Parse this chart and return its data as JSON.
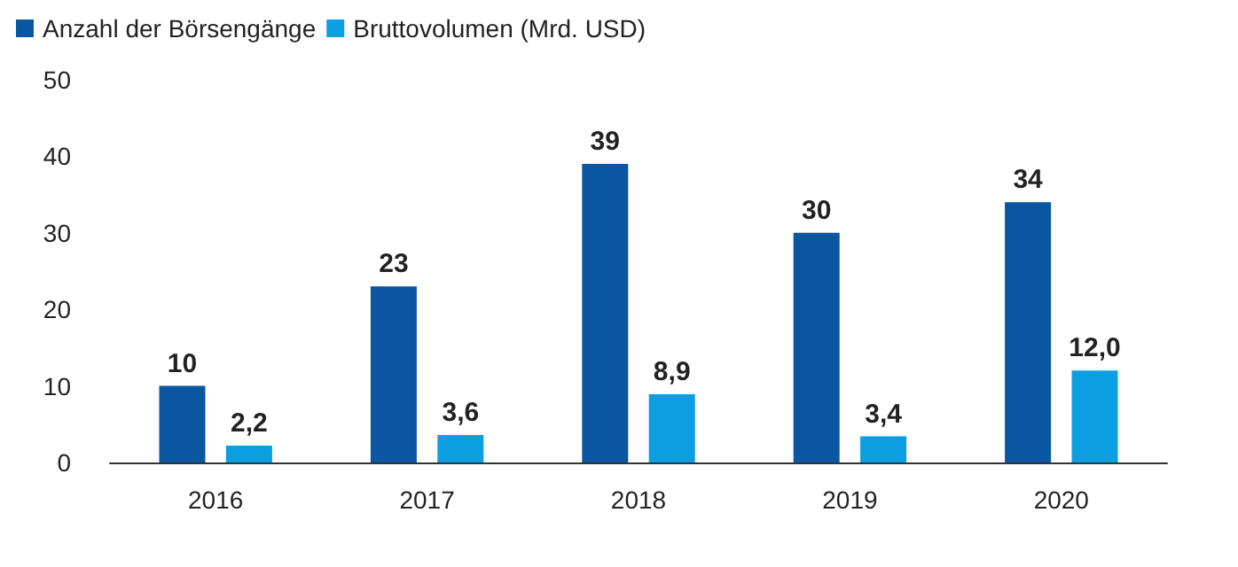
{
  "chart_data": {
    "type": "bar",
    "categories": [
      "2016",
      "2017",
      "2018",
      "2019",
      "2020"
    ],
    "series": [
      {
        "name": "Anzahl der Börsengänge",
        "color": "#0a56a0",
        "values": [
          10,
          23,
          39,
          30,
          34
        ],
        "value_labels": [
          "10",
          "23",
          "39",
          "30",
          "34"
        ]
      },
      {
        "name": "Bruttovolumen (Mrd. USD)",
        "color": "#0b9ee0",
        "values": [
          2.2,
          3.6,
          8.9,
          3.4,
          12.0
        ],
        "value_labels": [
          "2,2",
          "3,6",
          "8,9",
          "3,4",
          "12,0"
        ]
      }
    ],
    "ylim": [
      0,
      50
    ],
    "yticks": [
      0,
      10,
      20,
      30,
      40,
      50
    ],
    "grid": false,
    "legend": "top left"
  }
}
